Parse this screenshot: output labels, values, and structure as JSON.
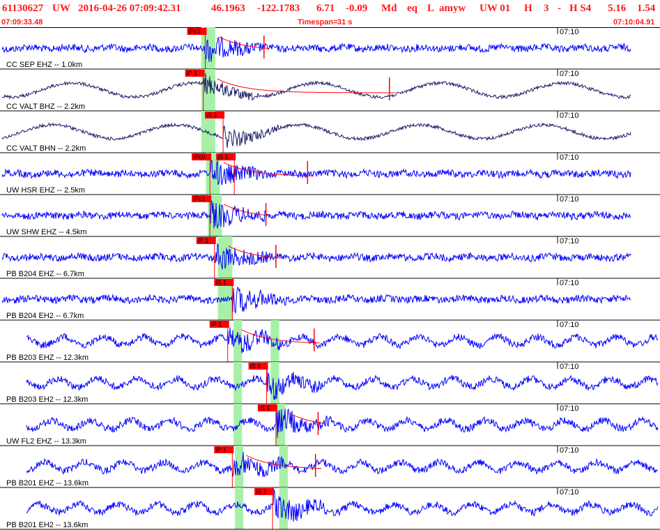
{
  "header": {
    "event_id": "61130627",
    "network": "UW",
    "datetime": "2016-04-26 07:09:42.31",
    "lat": "46.1963",
    "lon": "-122.1783",
    "depth": "6.71",
    "magnitude": "-0.09",
    "mag_type": "Md",
    "event_type": "eq",
    "location_code": "L",
    "author": "amyw",
    "solution": "UW 01",
    "quality_h": "H",
    "count": "3",
    "dash": "-",
    "quality_s": "H S4",
    "value1": "5.16",
    "value2": "1.54"
  },
  "subheader": {
    "start_time": "07:09:33.48",
    "timespan_label": "Timespan=",
    "timespan_value": "31 s",
    "end_time": "07:10:04.91"
  },
  "colors": {
    "header_text": "#ff1a1a",
    "trace_blue": "#0000ff",
    "trace_dark": "#1a1a66",
    "pick_red": "#ff0000",
    "window_green": "#a8f0a8"
  },
  "traces": [
    {
      "station": "CC SEP EHZ -- 1.0km",
      "minute_label": "07:10",
      "color": "blue",
      "picks": [
        {
          "label": "iPc1",
          "t": 0.311
        },
        {
          "label": "",
          "t": 0.4
        }
      ],
      "windows": [
        0.305,
        0.338
      ]
    },
    {
      "station": "CC VALT BHZ -- 2.2km",
      "minute_label": "07:10",
      "color": "dark",
      "picks": [
        {
          "label": "iP 1",
          "t": 0.308
        },
        {
          "label": "",
          "t": 0.59
        }
      ],
      "windows": [
        0.305,
        0.338
      ]
    },
    {
      "station": "CC VALT BHN -- 2.2km",
      "minute_label": "07:10",
      "color": "dark",
      "picks": [
        {
          "label": "iS 1",
          "t": 0.338
        }
      ],
      "windows": [
        0.305,
        0.338
      ]
    },
    {
      "station": "UW HSR EHZ -- 2.5km",
      "minute_label": "07:10",
      "color": "blue",
      "picks": [
        {
          "label": "iPc0",
          "t": 0.318
        },
        {
          "label": "iS 1",
          "t": 0.355
        },
        {
          "label": "",
          "t": 0.466
        }
      ],
      "windows": [
        0.312,
        0.345
      ]
    },
    {
      "station": "UW SHW EHZ -- 4.5km",
      "minute_label": "07:10",
      "color": "blue",
      "picks": [
        {
          "label": "iPc1",
          "t": 0.318
        },
        {
          "label": "",
          "t": 0.403
        }
      ],
      "windows": [
        0.315,
        0.348
      ]
    },
    {
      "station": "PB B204 EHZ -- 6.7km",
      "minute_label": "07:10",
      "color": "blue",
      "picks": [
        {
          "label": "iP 1",
          "t": 0.325
        },
        {
          "label": "",
          "t": 0.418
        }
      ],
      "windows": [
        0.33,
        0.365
      ]
    },
    {
      "station": "PB B204 EH2 -- 6.7km",
      "minute_label": "07:10",
      "color": "blue",
      "picks": [
        {
          "label": "iS 1",
          "t": 0.352
        }
      ],
      "windows": [
        0.33,
        0.365
      ]
    },
    {
      "station": "PB B203 EHZ -- 12.3km",
      "minute_label": "07:10",
      "color": "blue",
      "picks": [
        {
          "label": "iP 1",
          "t": 0.345
        },
        {
          "label": "",
          "t": 0.476
        }
      ],
      "windows": [
        0.354,
        0.368,
        0.41,
        0.425
      ]
    },
    {
      "station": "PB B203 EH2 -- 12.3km",
      "minute_label": "07:10",
      "color": "blue",
      "picks": [
        {
          "label": "iS 1",
          "t": 0.404
        }
      ],
      "windows": [
        0.354,
        0.368,
        0.41,
        0.425
      ]
    },
    {
      "station": "UW FL2 EHZ -- 13.3km",
      "minute_label": "07:10",
      "color": "blue",
      "picks": [
        {
          "label": "iS 1",
          "t": 0.418
        },
        {
          "label": "",
          "t": 0.482
        }
      ],
      "windows": [
        0.354,
        0.368,
        0.418,
        0.435
      ]
    },
    {
      "station": "PB B201 EHZ -- 13.6km",
      "minute_label": "07:10",
      "color": "blue",
      "picks": [
        {
          "label": "iP 1",
          "t": 0.352
        },
        {
          "label": "",
          "t": 0.478
        }
      ],
      "windows": [
        0.356,
        0.37,
        0.423,
        0.438
      ]
    },
    {
      "station": "PB B201 EH2 -- 13.6km",
      "minute_label": "07:10",
      "color": "blue",
      "picks": [
        {
          "label": "iS 1",
          "t": 0.413
        }
      ],
      "windows": [
        0.356,
        0.37,
        0.423,
        0.438
      ]
    }
  ]
}
